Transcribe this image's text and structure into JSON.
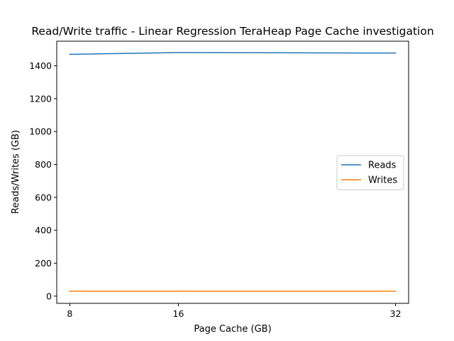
{
  "chart_data": {
    "type": "line",
    "title": "Read/Write traffic - Linear Regression TeraHeap Page Cache investigation",
    "xlabel": "Page Cache (GB)",
    "ylabel": "Reads/Writes (GB)",
    "x": [
      8,
      16,
      32
    ],
    "xticks": [
      "8",
      "16",
      "32"
    ],
    "yticks": [
      0,
      200,
      400,
      600,
      800,
      1000,
      1200,
      1400
    ],
    "xlim": [
      7.04,
      32.96
    ],
    "ylim": [
      -44,
      1549
    ],
    "grid": false,
    "legend_position": "center-right",
    "series": [
      {
        "name": "Reads",
        "values": [
          1469,
          1480,
          1477
        ],
        "color": "#1f77b4"
      },
      {
        "name": "Writes",
        "values": [
          30,
          30,
          30
        ],
        "color": "#ff7f0e"
      }
    ]
  }
}
